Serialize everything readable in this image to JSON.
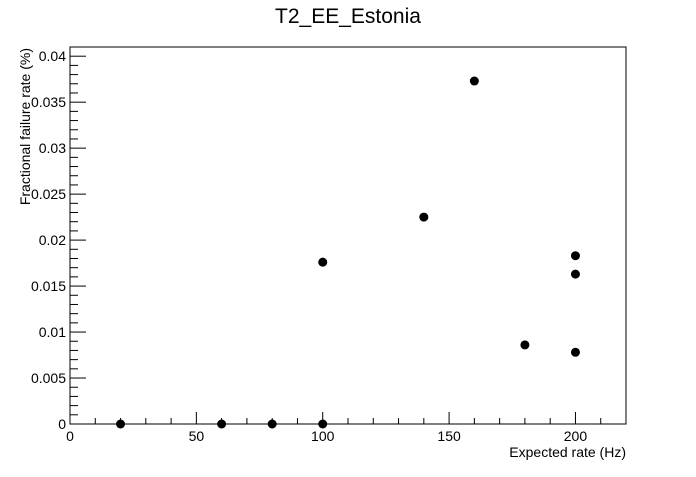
{
  "chart_data": {
    "type": "scatter",
    "title": "T2_EE_Estonia",
    "xlabel": "Expected rate (Hz)",
    "ylabel": "Fractional failure rate (%)",
    "xlim": [
      0,
      220
    ],
    "ylim": [
      0,
      0.041
    ],
    "grid": false,
    "legend": "none",
    "x_ticks": [
      "0",
      "50",
      "100",
      "150",
      "200"
    ],
    "y_ticks": [
      "0",
      "0.005",
      "0.01",
      "0.015",
      "0.02",
      "0.025",
      "0.03",
      "0.035",
      "0.04"
    ],
    "series": [
      {
        "points": [
          {
            "x": 20,
            "y": 0
          },
          {
            "x": 60,
            "y": 0
          },
          {
            "x": 80,
            "y": 0
          },
          {
            "x": 100,
            "y": 0
          },
          {
            "x": 100,
            "y": 0.0176
          },
          {
            "x": 140,
            "y": 0.0225
          },
          {
            "x": 160,
            "y": 0.0373
          },
          {
            "x": 180,
            "y": 0.0086
          },
          {
            "x": 200,
            "y": 0.0183
          },
          {
            "x": 200,
            "y": 0.0163
          },
          {
            "x": 200,
            "y": 0.0078
          }
        ]
      }
    ]
  }
}
